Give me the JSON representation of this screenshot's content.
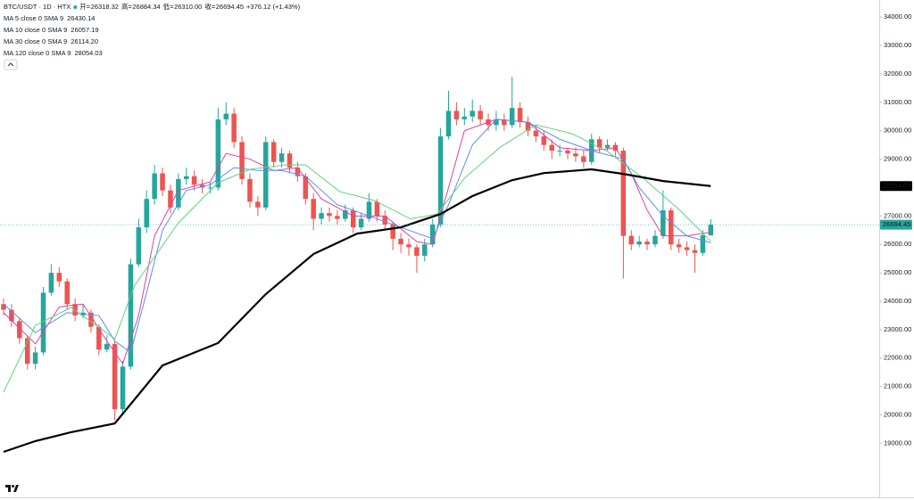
{
  "chart_data": {
    "type": "candlestick",
    "header": {
      "symbol": "BTC/USDT · 1D · HTX",
      "open_label": "开=",
      "open": "26318.32",
      "high_label": "高=",
      "high": "26884.34",
      "low_label": "低=",
      "low": "26310.00",
      "close_label": "收=",
      "close": "26694.45",
      "change": "+376.12 (+1.43%)"
    },
    "up_color": "#26a69a",
    "down_color": "#ef5350",
    "xlim": [
      -0.45,
      110.2
    ],
    "ylim": [
      17100,
      34600
    ],
    "yticks": [
      {
        "value": 34000,
        "label": "34000.00"
      },
      {
        "value": 33000,
        "label": "33000.00"
      },
      {
        "value": 32000,
        "label": "32000.00"
      },
      {
        "value": 31000,
        "label": "31000.00"
      },
      {
        "value": 30000,
        "label": "30000.00"
      },
      {
        "value": 29000,
        "label": "29000.00"
      },
      {
        "value": 28000,
        "label": "28000.00"
      },
      {
        "value": 27000,
        "label": "27000.00"
      },
      {
        "value": 26000,
        "label": "26000.00"
      },
      {
        "value": 25000,
        "label": "25000.00"
      },
      {
        "value": 24000,
        "label": "24000.00"
      },
      {
        "value": 23000,
        "label": "23000.00"
      },
      {
        "value": 22000,
        "label": "22000.00"
      },
      {
        "value": 21000,
        "label": "21000.00"
      },
      {
        "value": 20000,
        "label": "20000.00"
      },
      {
        "value": 19000,
        "label": "19000.00"
      }
    ],
    "price_tags": [
      {
        "value": 28054.03,
        "label": "28054.03",
        "color": "#000000"
      },
      {
        "value": 26694.45,
        "label": "26694.45",
        "color": "#26a69a"
      }
    ],
    "candles": [
      [
        23900,
        24100,
        23500,
        23700
      ],
      [
        23700,
        23900,
        23100,
        23300
      ],
      [
        23300,
        23400,
        22500,
        22700
      ],
      [
        22700,
        22800,
        21600,
        21800
      ],
      [
        21800,
        22400,
        21600,
        22200
      ],
      [
        22200,
        24500,
        22100,
        24300
      ],
      [
        24300,
        25300,
        24200,
        25000
      ],
      [
        25000,
        25200,
        24500,
        24700
      ],
      [
        24700,
        24800,
        23700,
        23900
      ],
      [
        23900,
        24100,
        23300,
        23500
      ],
      [
        23500,
        23900,
        23400,
        23600
      ],
      [
        23600,
        23700,
        22900,
        23100
      ],
      [
        23100,
        23200,
        22100,
        22300
      ],
      [
        22300,
        22800,
        22200,
        22500
      ],
      [
        22500,
        22600,
        19800,
        20200
      ],
      [
        20200,
        21900,
        20000,
        21700
      ],
      [
        21700,
        25500,
        21600,
        25300
      ],
      [
        25300,
        26900,
        25200,
        26600
      ],
      [
        26600,
        27900,
        26400,
        27600
      ],
      [
        27600,
        28800,
        27400,
        28500
      ],
      [
        28500,
        28700,
        27700,
        27900
      ],
      [
        27900,
        28100,
        27100,
        27300
      ],
      [
        27300,
        28500,
        27200,
        28300
      ],
      [
        28300,
        28700,
        28100,
        28400
      ],
      [
        28400,
        28600,
        27900,
        28100
      ],
      [
        28100,
        28300,
        27800,
        28000
      ],
      [
        28000,
        28200,
        27800,
        28000
      ],
      [
        28000,
        30800,
        27900,
        30400
      ],
      [
        30400,
        31000,
        30200,
        30600
      ],
      [
        30600,
        30800,
        29400,
        29600
      ],
      [
        29600,
        29800,
        28100,
        28300
      ],
      [
        28300,
        28500,
        27300,
        27500
      ],
      [
        27500,
        27700,
        27000,
        27300
      ],
      [
        27300,
        29800,
        27200,
        29600
      ],
      [
        29600,
        29700,
        28700,
        28900
      ],
      [
        28900,
        29400,
        28700,
        29200
      ],
      [
        29200,
        29300,
        28500,
        28700
      ],
      [
        28700,
        28900,
        28200,
        28400
      ],
      [
        28400,
        28500,
        27400,
        27600
      ],
      [
        27600,
        27800,
        26500,
        26900
      ],
      [
        26900,
        27300,
        26700,
        27100
      ],
      [
        27100,
        27300,
        26800,
        27000
      ],
      [
        27000,
        27200,
        26700,
        26900
      ],
      [
        26900,
        27400,
        26800,
        27200
      ],
      [
        27200,
        27300,
        26400,
        26600
      ],
      [
        26600,
        27100,
        26500,
        26900
      ],
      [
        26900,
        27800,
        26800,
        27500
      ],
      [
        27500,
        27600,
        26800,
        27000
      ],
      [
        27000,
        27200,
        26500,
        26700
      ],
      [
        26700,
        26800,
        25800,
        26200
      ],
      [
        26200,
        26400,
        25700,
        26000
      ],
      [
        26000,
        26200,
        25600,
        25900
      ],
      [
        25900,
        26000,
        25000,
        25600
      ],
      [
        25600,
        26200,
        25400,
        26000
      ],
      [
        26000,
        26900,
        25900,
        26700
      ],
      [
        26700,
        30100,
        26600,
        29800
      ],
      [
        29800,
        31400,
        29700,
        30700
      ],
      [
        30700,
        31000,
        30200,
        30400
      ],
      [
        30400,
        30800,
        30200,
        30500
      ],
      [
        30500,
        31100,
        30300,
        30700
      ],
      [
        30700,
        30900,
        30200,
        30400
      ],
      [
        30400,
        30600,
        30000,
        30200
      ],
      [
        30200,
        30700,
        30000,
        30400
      ],
      [
        30400,
        30600,
        30000,
        30200
      ],
      [
        30200,
        31900,
        30100,
        30800
      ],
      [
        30800,
        31000,
        30100,
        30300
      ],
      [
        30300,
        30500,
        29800,
        30000
      ],
      [
        30000,
        30200,
        29600,
        29800
      ],
      [
        29800,
        30000,
        29300,
        29500
      ],
      [
        29500,
        29700,
        29000,
        29300
      ],
      [
        29300,
        29500,
        29100,
        29300
      ],
      [
        29300,
        29400,
        29000,
        29200
      ],
      [
        29200,
        29400,
        28900,
        29100
      ],
      [
        29100,
        29300,
        28700,
        28900
      ],
      [
        28900,
        29900,
        28800,
        29700
      ],
      [
        29700,
        29800,
        29200,
        29400
      ],
      [
        29400,
        29700,
        29300,
        29500
      ],
      [
        29500,
        29600,
        29100,
        29300
      ],
      [
        29300,
        29400,
        24800,
        26300
      ],
      [
        26300,
        26500,
        25800,
        26000
      ],
      [
        26000,
        26300,
        25900,
        26100
      ],
      [
        26100,
        26200,
        25800,
        26000
      ],
      [
        26000,
        26500,
        25900,
        26300
      ],
      [
        26300,
        27900,
        26200,
        27200
      ],
      [
        27200,
        27300,
        25800,
        26000
      ],
      [
        26000,
        26200,
        25700,
        25900
      ],
      [
        25900,
        26100,
        25600,
        25800
      ],
      [
        25800,
        26000,
        25000,
        25700
      ],
      [
        25700,
        26500,
        25600,
        26320
      ],
      [
        26318.32,
        26884.34,
        26310,
        26694.45
      ]
    ],
    "series": [
      {
        "name": "MA 5 close 0 SMA 9",
        "color": "#e040a0",
        "last_label": "26430.14",
        "width": 1,
        "x": [
          0,
          4,
          7,
          10,
          13,
          15,
          17,
          19,
          22,
          26,
          28,
          31,
          34,
          37,
          40,
          44,
          48,
          52,
          54,
          56,
          58,
          62,
          66,
          70,
          74,
          77,
          79,
          81,
          83,
          86,
          89
        ],
        "values": [
          23600,
          22500,
          23800,
          23900,
          22600,
          21800,
          23500,
          26300,
          27900,
          28200,
          29200,
          29000,
          28600,
          28700,
          27600,
          27000,
          27000,
          26100,
          26000,
          28000,
          30000,
          30400,
          30300,
          29400,
          29300,
          29400,
          28500,
          27200,
          26300,
          26300,
          26430.14
        ]
      },
      {
        "name": "MA 10 close 0 SMA 9",
        "color": "#5b8def",
        "last_label": "26057.19",
        "width": 1,
        "x": [
          0,
          4,
          8,
          12,
          14,
          16,
          18,
          20,
          23,
          26,
          29,
          32,
          35,
          38,
          42,
          46,
          50,
          54,
          56,
          59,
          62,
          66,
          70,
          74,
          78,
          80,
          83,
          86,
          89
        ],
        "values": [
          23900,
          22900,
          23600,
          23500,
          22600,
          22200,
          24300,
          26500,
          27900,
          28100,
          28700,
          28600,
          28600,
          28400,
          27400,
          27000,
          26600,
          26200,
          27400,
          29500,
          30400,
          30300,
          29700,
          29300,
          29000,
          28000,
          27000,
          26300,
          26057.19
        ]
      },
      {
        "name": "MA 30 close 0 SMA 9",
        "color": "#5ed37a",
        "last_label": "26114.20",
        "width": 1,
        "x": [
          0,
          4,
          8.5,
          14,
          16.5,
          22,
          27,
          31,
          35.5,
          38,
          42.3,
          46.7,
          51.2,
          54.6,
          58,
          62.5,
          67,
          71.5,
          76,
          80.5,
          85,
          89
        ],
        "values": [
          20800,
          23150,
          23780,
          22680,
          24560,
          26760,
          28170,
          28640,
          28800,
          28800,
          27860,
          27540,
          26900,
          27070,
          28330,
          29420,
          30210,
          29900,
          29270,
          28330,
          27230,
          26114.2
        ]
      },
      {
        "name": "MA 120 close 0 SMA 9",
        "color": "#000000",
        "last_label": "28054.03",
        "width": 2.2,
        "x": [
          0,
          4,
          8.5,
          14,
          20,
          27,
          33,
          39,
          44.5,
          50,
          55,
          59,
          64,
          68,
          74,
          78,
          83,
          89
        ],
        "values": [
          18700,
          19080,
          19390,
          19700,
          21740,
          22530,
          24250,
          25660,
          26380,
          26600,
          27070,
          27700,
          28260,
          28510,
          28640,
          28480,
          28230,
          28054.03
        ]
      }
    ]
  }
}
